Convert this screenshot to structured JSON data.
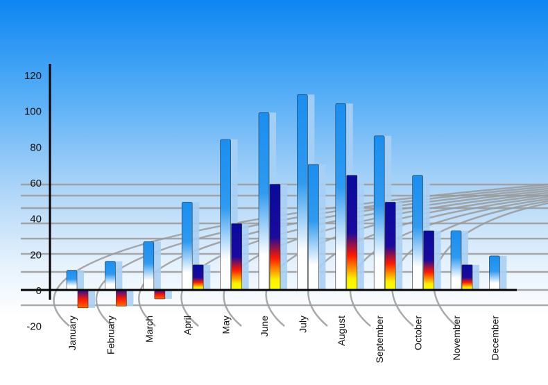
{
  "chart_data": {
    "type": "bar",
    "categories": [
      "January",
      "February",
      "March",
      "April",
      "May",
      "June",
      "July",
      "August",
      "September",
      "October",
      "November",
      "December"
    ],
    "series": [
      {
        "values": [
          11,
          16,
          27,
          49,
          84,
          99,
          109,
          104,
          86,
          64,
          33,
          19
        ]
      },
      {
        "values": [
          -10,
          -9,
          -5,
          14,
          37,
          59,
          70,
          64,
          49,
          33,
          14,
          null
        ],
        "bar_styles": [
          "fire",
          "fire",
          "fire",
          "fire",
          "fire",
          "fire",
          "blue",
          "fire",
          "fire",
          "fire",
          "fire",
          "fire"
        ]
      }
    ],
    "yticks": [
      "120",
      "100",
      "80",
      "60",
      "40",
      "20",
      "0",
      "-20"
    ],
    "ylim": [
      -20,
      120
    ],
    "title": "",
    "xlabel": "",
    "ylabel": "",
    "grid": false,
    "colors": {
      "series1_top": "#1a8ef0",
      "series2_top": "#0a0a9e",
      "series2_mid": "#ff1a00",
      "series2_bottom": "#ffff00",
      "background_top": "#0d86f2"
    }
  }
}
